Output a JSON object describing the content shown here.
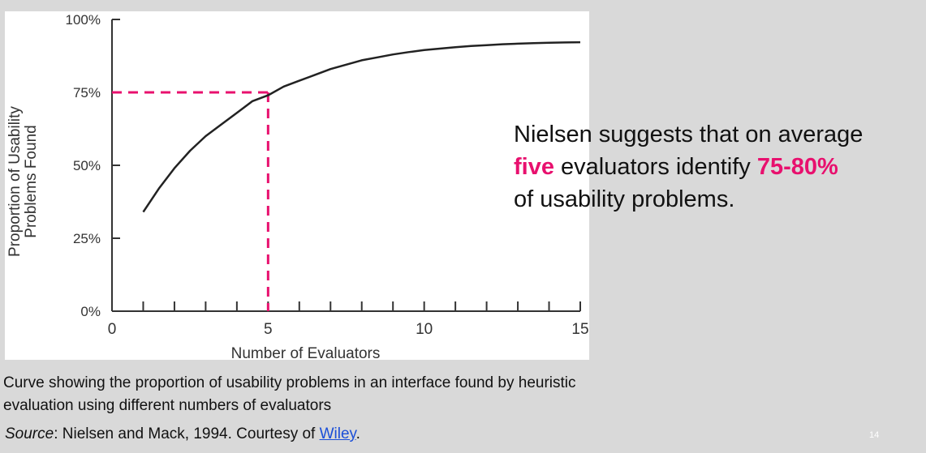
{
  "slide": {
    "title_fragment": "found",
    "page_number": "14"
  },
  "chart_data": {
    "type": "line",
    "xlabel": "Number of Evaluators",
    "ylabel_line1": "Proportion of Usability",
    "ylabel_line2": "Problems Found",
    "xlim": [
      0,
      15
    ],
    "ylim": [
      0,
      100
    ],
    "x_ticks": [
      0,
      5,
      10,
      15
    ],
    "x_tick_labels": [
      "0",
      "5",
      "10",
      "15"
    ],
    "x_minor_ticks": [
      1,
      2,
      3,
      4,
      5,
      6,
      7,
      8,
      9,
      10,
      11,
      12,
      13,
      14,
      15
    ],
    "y_ticks": [
      0,
      25,
      50,
      75,
      100
    ],
    "y_tick_labels": [
      "0%",
      "25%",
      "50%",
      "75%",
      "100%"
    ],
    "series": [
      {
        "x": [
          1,
          1.5,
          2,
          2.5,
          3,
          3.5,
          4,
          4.5,
          5,
          5.5,
          6,
          6.5,
          7,
          7.5,
          8,
          8.5,
          9,
          9.5,
          10,
          10.5,
          11,
          11.5,
          12,
          12.5,
          13,
          13.5,
          14,
          14.5,
          15
        ],
        "y": [
          34,
          42,
          49,
          55,
          60,
          64,
          68,
          72,
          74,
          77,
          79,
          81,
          83,
          84.5,
          86,
          87,
          88,
          88.8,
          89.5,
          90,
          90.5,
          90.9,
          91.2,
          91.5,
          91.7,
          91.9,
          92,
          92.1,
          92.2
        ],
        "color": "#222222"
      }
    ],
    "reference": {
      "x": 5,
      "y": 75,
      "color": "#e8106e",
      "style": "dashed"
    },
    "grid": false
  },
  "annotation": {
    "line1": "Nielsen suggests that on average",
    "highlight1": "five",
    "mid": " evaluators identify ",
    "highlight2": "75-80%",
    "line3": "of usability problems.",
    "accent_color": "#e8106e"
  },
  "caption": "Curve showing the proportion of usability problems in an interface found by heuristic evaluation using different numbers of evaluators",
  "source": {
    "label": "Source",
    "text": ": Nielsen and Mack, 1994. Courtesy of ",
    "link_text": "Wiley",
    "end": "."
  }
}
